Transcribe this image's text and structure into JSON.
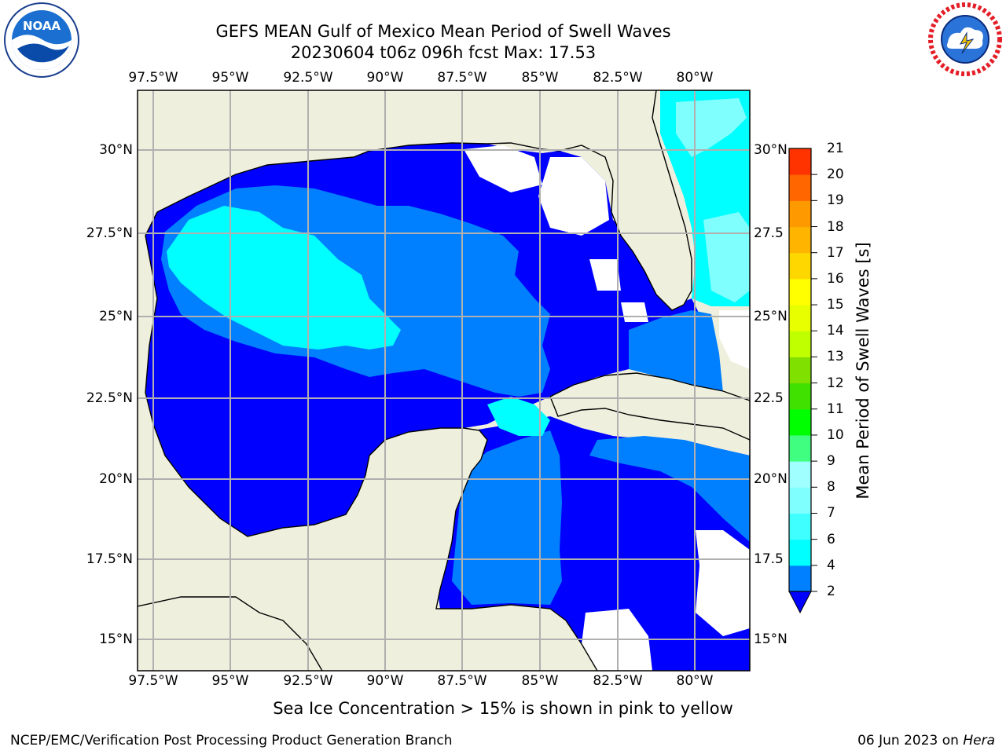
{
  "title": {
    "line1": "GEFS MEAN Gulf of Mexico Mean Period of Swell Waves",
    "line2": "20230604 t06z 096h fcst   Max: 17.53"
  },
  "map": {
    "lon_labels": [
      "97.5°W",
      "95°W",
      "92.5°W",
      "90°W",
      "87.5°W",
      "85°W",
      "82.5°W",
      "80°W"
    ],
    "lat_labels_left": [
      "30°N",
      "27.5°N",
      "25°N",
      "22.5°N",
      "20°N",
      "17.5°N",
      "15°N"
    ],
    "lat_labels_right": [
      "30°N",
      "27.5",
      "25°N",
      "22.5",
      "20°N",
      "17.5",
      "15°N"
    ],
    "colors": {
      "land": "#efefdd",
      "ocean_low": "#0000ff",
      "ocean_mid": "#0080ff",
      "ocean_cyan": "#00ffff",
      "ocean_light": "#80ffff",
      "orange": "#ff9900",
      "amber": "#ffb400",
      "grid": "#b0b0b0"
    }
  },
  "colorbar": {
    "label": "Mean Period of Swell Waves [s]",
    "ticks": [
      "2",
      "4",
      "6",
      "7",
      "8",
      "9",
      "10",
      "11",
      "12",
      "13",
      "14",
      "15",
      "16",
      "17",
      "18",
      "19",
      "20",
      "21"
    ],
    "colors": [
      "#0080ff",
      "#00ffff",
      "#40ffff",
      "#80ffff",
      "#a0ffff",
      "#40ff80",
      "#00ff00",
      "#40e000",
      "#80e000",
      "#c0ff00",
      "#e8ff00",
      "#ffff00",
      "#ffd700",
      "#ffb400",
      "#ff9900",
      "#ff6600",
      "#ff3300",
      "#ff0000"
    ]
  },
  "note": "Sea Ice Concentration > 15% is shown in pink to yellow",
  "footer": {
    "left": "NCEP/EMC/Verification Post Processing Product Generation Branch",
    "right_date": "06 Jun 2023 on ",
    "right_host": "Hera"
  }
}
